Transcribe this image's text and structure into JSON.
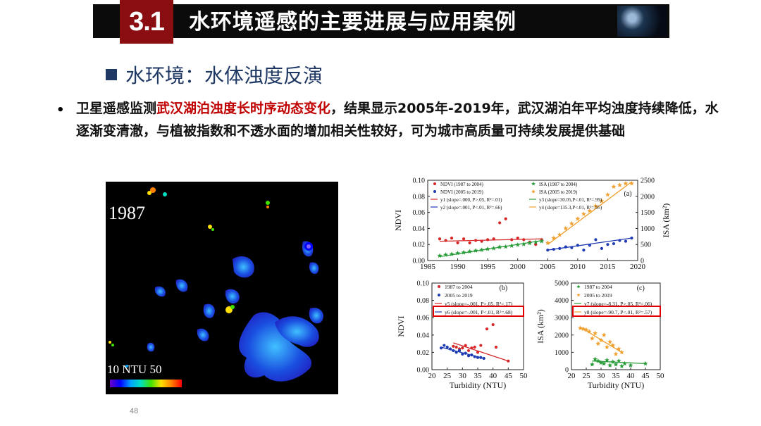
{
  "header": {
    "section_number": "3.1",
    "title": "水环境遥感的主要进展与应用案例"
  },
  "subtitle": "水环境：水体浊度反演",
  "bullet": {
    "marker": "•",
    "text_before": "卫星遥感监测",
    "highlight": "武汉湖泊浊度长时序动态变化",
    "text_after": "，结果显示2005年-2019年，武汉湖泊年平均浊度持续降低，水逐渐变清澈，与植被指数和不透水面的增加相关性较好，可为城市高质量可持续发展提供基础"
  },
  "map": {
    "year_label": "1987",
    "legend_label": "10  NTU  50"
  },
  "page_number": "48",
  "colors": {
    "header_bg": "#0b0b0b",
    "number_bg": "#8a0d12",
    "subtitle": "#1f3864",
    "highlight": "#c00000"
  },
  "chart_data": [
    {
      "type": "scatter",
      "panel": "(a)",
      "xlabel": "",
      "ylabel": "NDVI",
      "y2label": "ISA (km²)",
      "xlim": [
        1985,
        2020
      ],
      "ylim": [
        0,
        0.1
      ],
      "y2lim": [
        0,
        2500
      ],
      "xticks": [
        "1985",
        "1990",
        "1995",
        "2000",
        "2005",
        "2010",
        "2015",
        "2020"
      ],
      "yticks": [
        "0.00",
        "0.02",
        "0.04",
        "0.06",
        "0.08",
        "0.10"
      ],
      "y2ticks": [
        "0",
        "500",
        "1000",
        "1500",
        "2000",
        "2500"
      ],
      "legend": [
        "NDVI (1987 to 2004)",
        "NDVI (2005 to 2019)",
        "y1 (slope=.000, P>.05, R²=.01)",
        "y2 (slope=.001, P<.01, R²=.66)",
        "ISA (1987 to 2004)",
        "ISA (2005 to 2019)",
        "y3 (slope=30.05,P<.01, R²=.99)",
        "y4 (slope=135.3,P<.01, R²=.95)"
      ],
      "series": [
        {
          "name": "NDVI (1987 to 2004)",
          "axis": "left",
          "color": "#d62728",
          "marker": "circle",
          "x": [
            1987,
            1988,
            1989,
            1990,
            1991,
            1992,
            1993,
            1994,
            1995,
            1996,
            1997,
            1998,
            1999,
            2000,
            2001,
            2002,
            2003,
            2004
          ],
          "y": [
            0.027,
            0.025,
            0.028,
            0.022,
            0.027,
            0.022,
            0.025,
            0.024,
            0.026,
            0.027,
            0.047,
            0.052,
            0.026,
            0.028,
            0.026,
            0.023,
            0.02,
            0.026
          ]
        },
        {
          "name": "NDVI (2005 to 2019)",
          "axis": "left",
          "color": "#1f3bb3",
          "marker": "circle",
          "x": [
            2005,
            2006,
            2007,
            2008,
            2009,
            2010,
            2011,
            2012,
            2013,
            2014,
            2015,
            2016,
            2017,
            2018,
            2019
          ],
          "y": [
            0.013,
            0.014,
            0.015,
            0.017,
            0.016,
            0.019,
            0.013,
            0.019,
            0.026,
            0.015,
            0.02,
            0.021,
            0.025,
            0.024,
            0.028
          ]
        },
        {
          "name": "ISA (1987 to 2004)",
          "axis": "right",
          "color": "#2a9d3a",
          "marker": "star",
          "x": [
            1987,
            1988,
            1989,
            1990,
            1991,
            1992,
            1993,
            1994,
            1995,
            1996,
            1997,
            1998,
            1999,
            2000,
            2001,
            2002,
            2003,
            2004
          ],
          "y": [
            150,
            180,
            200,
            230,
            250,
            280,
            310,
            330,
            360,
            380,
            420,
            430,
            460,
            490,
            510,
            540,
            570,
            600
          ]
        },
        {
          "name": "ISA (2005 to 2019)",
          "axis": "right",
          "color": "#f0a030",
          "marker": "star",
          "x": [
            2005,
            2006,
            2007,
            2008,
            2009,
            2010,
            2011,
            2012,
            2013,
            2014,
            2015,
            2016,
            2017,
            2018,
            2019
          ],
          "y": [
            550,
            700,
            800,
            1000,
            1150,
            1300,
            1450,
            1550,
            1700,
            1850,
            2050,
            2300,
            2350,
            2400,
            2400
          ]
        }
      ],
      "fits": [
        {
          "name": "y1",
          "axis": "left",
          "color": "#d62728",
          "x": [
            1987,
            2004
          ],
          "y": [
            0.024,
            0.027
          ]
        },
        {
          "name": "y2",
          "axis": "left",
          "color": "#1f3bb3",
          "x": [
            2005,
            2019
          ],
          "y": [
            0.013,
            0.028
          ]
        },
        {
          "name": "y3",
          "axis": "right",
          "color": "#2a9d3a",
          "x": [
            1987,
            2004
          ],
          "y": [
            120,
            620
          ]
        },
        {
          "name": "y4",
          "axis": "right",
          "color": "#f0a030",
          "x": [
            2005,
            2019
          ],
          "y": [
            500,
            2450
          ]
        }
      ]
    },
    {
      "type": "scatter",
      "panel": "(b)",
      "xlabel": "Turbidity (NTU)",
      "ylabel": "NDVI",
      "xlim": [
        20,
        50
      ],
      "ylim": [
        0,
        0.1
      ],
      "xticks": [
        "20",
        "25",
        "30",
        "35",
        "40",
        "45",
        "50"
      ],
      "yticks": [
        "0.00",
        "0.02",
        "0.04",
        "0.06",
        "0.08",
        "0.10"
      ],
      "legend": [
        "1987 to 2004",
        "2005 to 2019",
        "y5 (slope=-.001, P>.05, R²=.17)",
        "y6 (slope=-.001, P<.01, R²=.68)"
      ],
      "series": [
        {
          "name": "1987 to 2004",
          "color": "#d62728",
          "marker": "circle",
          "x": [
            27,
            28,
            29,
            30,
            31,
            32,
            33,
            34,
            35,
            36,
            38,
            40,
            41,
            45
          ],
          "y": [
            0.027,
            0.026,
            0.024,
            0.025,
            0.028,
            0.022,
            0.025,
            0.026,
            0.02,
            0.028,
            0.047,
            0.052,
            0.026,
            0.01
          ]
        },
        {
          "name": "2005 to 2019",
          "color": "#1f3bb3",
          "marker": "circle",
          "x": [
            23,
            24,
            25,
            26,
            27,
            28,
            29,
            30,
            31,
            32,
            33,
            34,
            35,
            36,
            37
          ],
          "y": [
            0.025,
            0.028,
            0.026,
            0.024,
            0.022,
            0.02,
            0.022,
            0.018,
            0.019,
            0.016,
            0.017,
            0.015,
            0.014,
            0.014,
            0.013
          ]
        }
      ],
      "fits": [
        {
          "name": "y5",
          "color": "#d62728",
          "x": [
            27,
            45
          ],
          "y": [
            0.031,
            0.01
          ]
        },
        {
          "name": "y6",
          "color": "#1f3bb3",
          "x": [
            23,
            37
          ],
          "y": [
            0.026,
            0.013
          ]
        }
      ]
    },
    {
      "type": "scatter",
      "panel": "(c)",
      "xlabel": "Turbidity (NTU)",
      "ylabel": "ISA (km²)",
      "xlim": [
        20,
        50
      ],
      "ylim": [
        0,
        5000
      ],
      "xticks": [
        "20",
        "25",
        "30",
        "35",
        "40",
        "45",
        "50"
      ],
      "yticks": [
        "0",
        "1000",
        "2000",
        "3000",
        "4000",
        "5000"
      ],
      "legend": [
        "1987 to 2004",
        "2005 to 2019",
        "y7 (slope=-8.31, P>.05, R²=.06)",
        "y8 (slope=-90.7, P<.01, R²=.57)"
      ],
      "series": [
        {
          "name": "1987 to 2004",
          "color": "#2a9d3a",
          "marker": "star",
          "x": [
            27,
            28,
            29,
            30,
            31,
            32,
            33,
            34,
            35,
            36,
            37,
            38,
            40,
            45
          ],
          "y": [
            300,
            600,
            500,
            400,
            350,
            550,
            250,
            450,
            300,
            500,
            200,
            350,
            250,
            350
          ]
        },
        {
          "name": "2005 to 2019",
          "color": "#f0a030",
          "marker": "star",
          "x": [
            23,
            24,
            25,
            26,
            27,
            28,
            29,
            30,
            31,
            32,
            33,
            34,
            35,
            36,
            37
          ],
          "y": [
            2400,
            2350,
            2300,
            2200,
            1800,
            2100,
            1500,
            1700,
            2000,
            1300,
            1600,
            1400,
            900,
            1200,
            1000
          ]
        }
      ],
      "fits": [
        {
          "name": "y7",
          "color": "#2a9d3a",
          "x": [
            27,
            45
          ],
          "y": [
            500,
            350
          ]
        },
        {
          "name": "y8",
          "color": "#f0a030",
          "x": [
            23,
            37
          ],
          "y": [
            2450,
            1000
          ]
        }
      ]
    }
  ]
}
